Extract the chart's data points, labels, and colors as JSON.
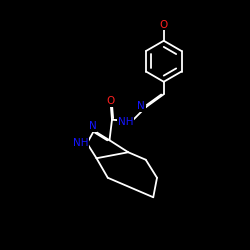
{
  "background_color": "#000000",
  "bond_color": "#ffffff",
  "N_color": "#1515ff",
  "O_color": "#ff2020",
  "figsize": [
    2.5,
    2.5
  ],
  "dpi": 100,
  "xlim": [
    0,
    10
  ],
  "ylim": [
    0,
    10
  ],
  "bond_lw": 1.3,
  "font_size": 7.5
}
